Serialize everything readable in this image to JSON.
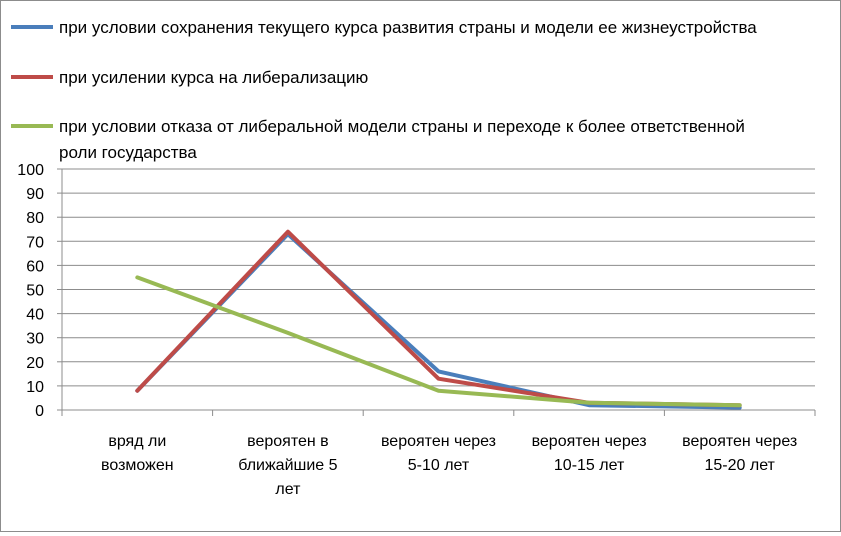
{
  "chart_data": {
    "type": "line",
    "categories": [
      [
        "вряд ли",
        "возможен"
      ],
      [
        "вероятен в",
        "ближайшие 5",
        "лет"
      ],
      [
        "вероятен через",
        "5-10 лет"
      ],
      [
        "вероятен через",
        "10-15 лет"
      ],
      [
        "вероятен через",
        "15-20 лет"
      ]
    ],
    "ylim": [
      0,
      100
    ],
    "yticks": [
      0,
      10,
      20,
      30,
      40,
      50,
      60,
      70,
      80,
      90,
      100
    ],
    "grid": true,
    "legend_position": "top",
    "series": [
      {
        "name": "при условии сохранения текущего курса развития страны и модели ее жизнеустройства",
        "legend_lines": [
          "при условии сохранения текущего курса развития страны и модели ее жизнеустройства"
        ],
        "color": "#4a7ebb",
        "values": [
          8,
          73,
          16,
          2,
          1
        ]
      },
      {
        "name": "при усилении курса на либерализацию",
        "legend_lines": [
          "при усилении курса на либерализацию"
        ],
        "color": "#be4b48",
        "values": [
          8,
          74,
          13,
          3,
          2
        ]
      },
      {
        "name": "при условии отказа от либеральной модели страны и переходе к более ответственной роли государства",
        "legend_lines": [
          "при условии отказа от либеральной модели страны и переходе к более ответственной",
          "роли государства"
        ],
        "color": "#98b954",
        "values": [
          55,
          32,
          8,
          3,
          2
        ]
      }
    ]
  }
}
